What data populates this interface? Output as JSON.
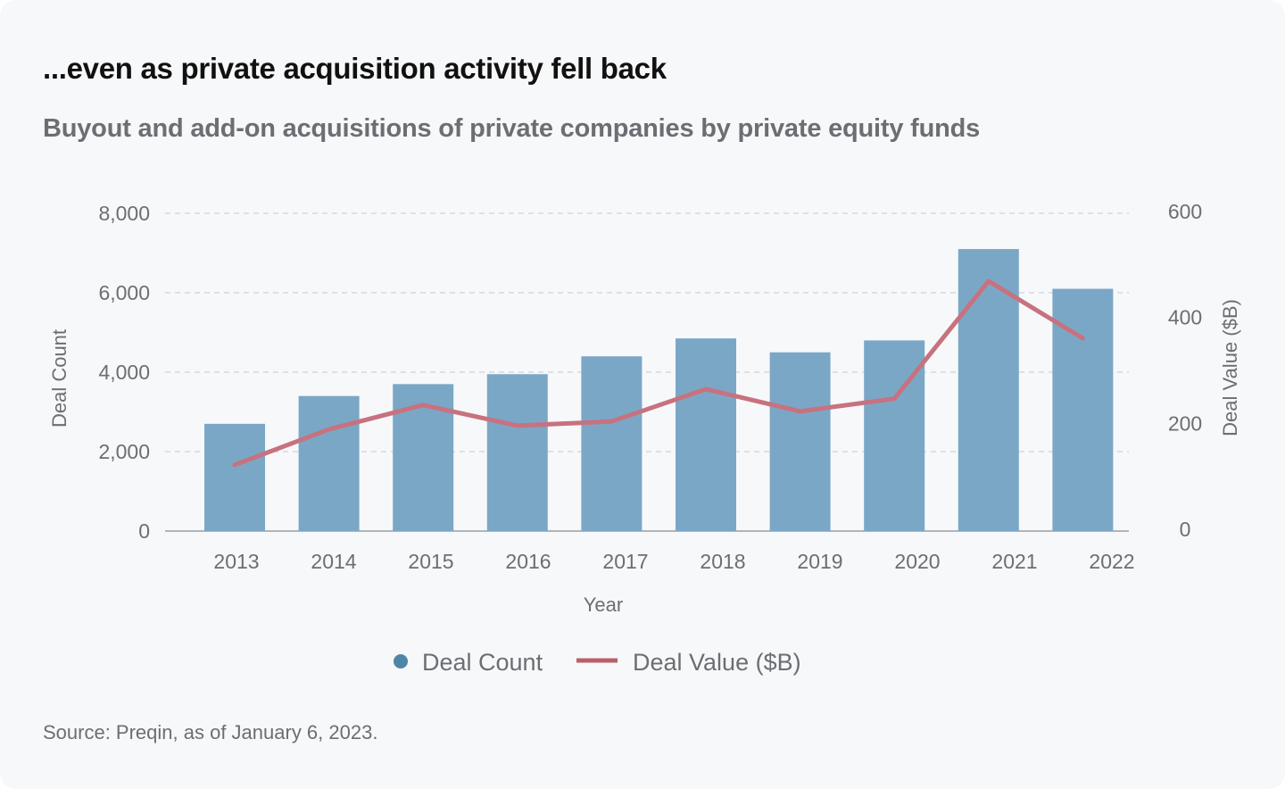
{
  "title": "...even as private acquisition activity fell back",
  "subtitle": "Buyout and add-on acquisitions of private companies by private equity funds",
  "source": "Source: Preqin, as of January 6, 2023.",
  "chart_data": {
    "type": "bar+line",
    "xlabel": "Year",
    "ylabel_left": "Deal Count",
    "ylabel_right": "Deal Value ($B)",
    "ylim_left": [
      0,
      8000
    ],
    "ylim_right": [
      0,
      600
    ],
    "yticks_left": [
      "0",
      "2,000",
      "4,000",
      "6,000",
      "8,000"
    ],
    "yticks_right": [
      "0",
      "200",
      "400",
      "600"
    ],
    "categories": [
      "2013",
      "2014",
      "2015",
      "2016",
      "2017",
      "2018",
      "2019",
      "2020",
      "2021",
      "2022"
    ],
    "grid": "horizontal dashed",
    "legend_placement": "bottom",
    "series": [
      {
        "name": "Deal Count",
        "type": "bar",
        "axis": "left",
        "color": "#7ba7c7",
        "legend_color": "#4f86a8",
        "values": [
          2700,
          3400,
          3700,
          3950,
          4400,
          4850,
          4500,
          4800,
          7100,
          6100
        ]
      },
      {
        "name": "Deal Value ($B)",
        "type": "line",
        "axis": "right",
        "color": "#c7727e",
        "legend_color": "#b85f6b",
        "values": [
          125,
          192,
          238,
          199,
          207,
          268,
          226,
          250,
          472,
          364
        ]
      }
    ]
  }
}
